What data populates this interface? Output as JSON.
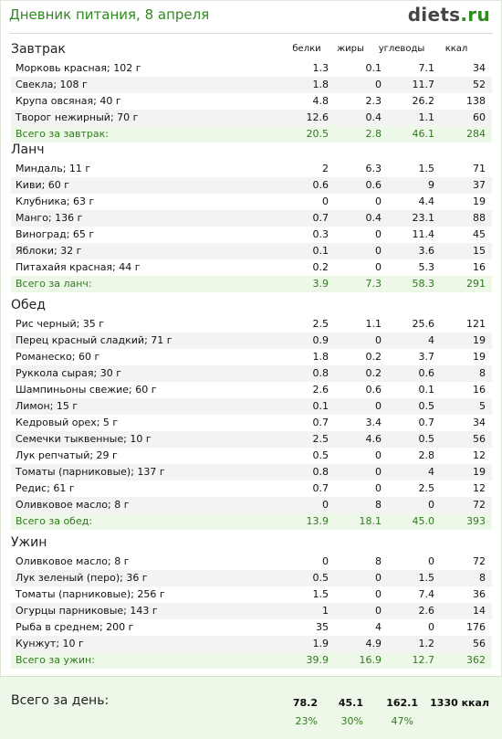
{
  "header": {
    "title": "Дневник питания, 8 апреля",
    "logo_main": "diets",
    "logo_tld": ".ru"
  },
  "columns": [
    "белки",
    "жиры",
    "углеводы",
    "ккал"
  ],
  "sections": [
    {
      "title": "Завтрак",
      "items": [
        [
          "Морковь красная; 102 г",
          "1.3",
          "0.1",
          "7.1",
          "34"
        ],
        [
          "Свекла; 108 г",
          "1.8",
          "0",
          "11.7",
          "52"
        ],
        [
          "Крупа овсяная; 40 г",
          "4.8",
          "2.3",
          "26.2",
          "138"
        ],
        [
          "Творог нежирный; 70 г",
          "12.6",
          "0.4",
          "1.1",
          "60"
        ]
      ],
      "total": [
        "Всего за завтрак:",
        "20.5",
        "2.8",
        "46.1",
        "284"
      ]
    },
    {
      "title": "Ланч",
      "items": [
        [
          "Миндаль; 11 г",
          "2",
          "6.3",
          "1.5",
          "71"
        ],
        [
          "Киви; 60 г",
          "0.6",
          "0.6",
          "9",
          "37"
        ],
        [
          "Клубника; 63 г",
          "0",
          "0",
          "4.4",
          "19"
        ],
        [
          "Манго; 136 г",
          "0.7",
          "0.4",
          "23.1",
          "88"
        ],
        [
          "Виноград; 65 г",
          "0.3",
          "0",
          "11.4",
          "45"
        ],
        [
          "Яблоки; 32 г",
          "0.1",
          "0",
          "3.6",
          "15"
        ],
        [
          "Питахайя красная; 44 г",
          "0.2",
          "0",
          "5.3",
          "16"
        ]
      ],
      "total": [
        "Всего за ланч:",
        "3.9",
        "7.3",
        "58.3",
        "291"
      ]
    },
    {
      "title": "Обед",
      "items": [
        [
          "Рис черный; 35 г",
          "2.5",
          "1.1",
          "25.6",
          "121"
        ],
        [
          "Перец красный сладкий; 71 г",
          "0.9",
          "0",
          "4",
          "19"
        ],
        [
          "Романеско; 60 г",
          "1.8",
          "0.2",
          "3.7",
          "19"
        ],
        [
          "Руккола сырая; 30 г",
          "0.8",
          "0.2",
          "0.6",
          "8"
        ],
        [
          "Шампиньоны свежие; 60 г",
          "2.6",
          "0.6",
          "0.1",
          "16"
        ],
        [
          "Лимон; 15 г",
          "0.1",
          "0",
          "0.5",
          "5"
        ],
        [
          "Кедровый орех; 5 г",
          "0.7",
          "3.4",
          "0.7",
          "34"
        ],
        [
          "Семечки тыквенные; 10 г",
          "2.5",
          "4.6",
          "0.5",
          "56"
        ],
        [
          "Лук репчатый; 29 г",
          "0.5",
          "0",
          "2.8",
          "12"
        ],
        [
          "Томаты (парниковые); 137 г",
          "0.8",
          "0",
          "4",
          "19"
        ],
        [
          "Редис; 61 г",
          "0.7",
          "0",
          "2.5",
          "12"
        ],
        [
          "Оливковое масло; 8 г",
          "0",
          "8",
          "0",
          "72"
        ]
      ],
      "total": [
        "Всего за обед:",
        "13.9",
        "18.1",
        "45.0",
        "393"
      ]
    },
    {
      "title": "Ужин",
      "items": [
        [
          "Оливковое масло; 8 г",
          "0",
          "8",
          "0",
          "72"
        ],
        [
          "Лук зеленый (перо); 36 г",
          "0.5",
          "0",
          "1.5",
          "8"
        ],
        [
          "Томаты (парниковые); 256 г",
          "1.5",
          "0",
          "7.4",
          "36"
        ],
        [
          "Огурцы парниковые; 143 г",
          "1",
          "0",
          "2.6",
          "14"
        ],
        [
          "Рыба в среднем; 200 г",
          "35",
          "4",
          "0",
          "176"
        ],
        [
          "Кунжут; 10 г",
          "1.9",
          "4.9",
          "1.2",
          "56"
        ]
      ],
      "total": [
        "Всего за ужин:",
        "39.9",
        "16.9",
        "12.7",
        "362"
      ]
    }
  ],
  "day": {
    "label": "Всего за день:",
    "values": [
      "78.2",
      "45.1",
      "162.1",
      "1330 ккал"
    ],
    "percents": [
      "23%",
      "30%",
      "47%"
    ]
  }
}
